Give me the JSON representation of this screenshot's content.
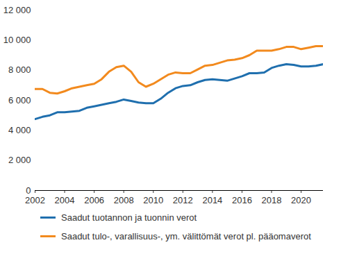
{
  "chart_data": {
    "type": "line",
    "x": [
      2002,
      2002.5,
      2003,
      2003.5,
      2004,
      2004.5,
      2005,
      2005.5,
      2006,
      2006.5,
      2007,
      2007.5,
      2008,
      2008.5,
      2009,
      2009.5,
      2010,
      2010.5,
      2011,
      2011.5,
      2012,
      2012.5,
      2013,
      2013.5,
      2014,
      2014.5,
      2015,
      2015.5,
      2016,
      2016.5,
      2017,
      2017.5,
      2018,
      2018.5,
      2019,
      2019.5,
      2020,
      2020.5,
      2021,
      2021.5
    ],
    "series": [
      {
        "name": "Saadut tuotannon ja tuonnin verot",
        "color": "#1f6fae",
        "values": [
          4750,
          4900,
          5000,
          5200,
          5200,
          5250,
          5300,
          5500,
          5600,
          5700,
          5800,
          5900,
          6050,
          5950,
          5850,
          5800,
          5800,
          6100,
          6500,
          6800,
          6950,
          7000,
          7200,
          7350,
          7400,
          7350,
          7300,
          7450,
          7600,
          7800,
          7800,
          7850,
          8150,
          8300,
          8400,
          8350,
          8250,
          8250,
          8300,
          8400
        ]
      },
      {
        "name": "Saadut tulo-, varallisuus-, ym. välittömät verot pl. pääomaverot",
        "color": "#f28a1e",
        "values": [
          6750,
          6750,
          6500,
          6450,
          6600,
          6800,
          6900,
          7000,
          7100,
          7400,
          7900,
          8200,
          8300,
          7900,
          7200,
          6900,
          7100,
          7400,
          7700,
          7850,
          7800,
          7800,
          8050,
          8300,
          8350,
          8500,
          8650,
          8700,
          8800,
          9000,
          9300,
          9300,
          9300,
          9400,
          9550,
          9550,
          9400,
          9500,
          9600,
          9600
        ]
      }
    ],
    "xlim": [
      2002,
      2021.5
    ],
    "xticks": [
      2002,
      2004,
      2006,
      2008,
      2010,
      2012,
      2014,
      2016,
      2018,
      2020
    ],
    "ylim": [
      0,
      12000
    ],
    "yticks": [
      0,
      {
        "value": 2000,
        "label": "2 000"
      },
      {
        "value": 4000,
        "label": "4 000"
      },
      {
        "value": 6000,
        "label": "6 000"
      },
      {
        "value": 8000,
        "label": "8 000"
      },
      {
        "value": 10000,
        "label": "10 000"
      },
      {
        "value": 12000,
        "label": "12 000"
      }
    ],
    "grid": false,
    "legend": "bottom"
  }
}
